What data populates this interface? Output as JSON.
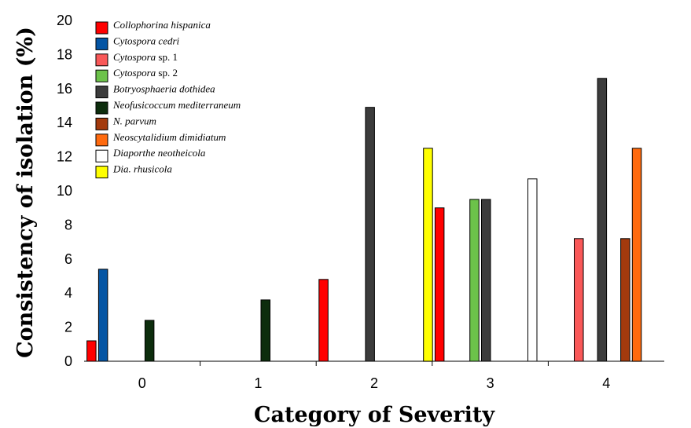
{
  "chart_data": {
    "type": "bar",
    "title": "",
    "xlabel": "Category of Severity",
    "ylabel": "Consistency of isolation (%)",
    "ylim": [
      0,
      20
    ],
    "yticks": [
      "0",
      "2",
      "4",
      "6",
      "8",
      "10",
      "12",
      "14",
      "16",
      "18",
      "20"
    ],
    "categories": [
      "0",
      "1",
      "2",
      "3",
      "4"
    ],
    "grid": false,
    "legend_position": "top-left",
    "series": [
      {
        "name": "Collophorina hispanica",
        "italic": "Collophorina hispanica",
        "suffix": "",
        "color": "#ff0000",
        "values": [
          1.2,
          0,
          4.8,
          9.0,
          0
        ]
      },
      {
        "name": "Cytospora cedri",
        "italic": "Cytospora cedri",
        "suffix": "",
        "color": "#0455a4",
        "values": [
          5.4,
          0,
          0,
          0,
          0
        ]
      },
      {
        "name": "Cytospora sp. 1",
        "italic": "Cytospora",
        "suffix": " sp. 1",
        "color": "#f95858",
        "values": [
          0,
          0,
          0,
          0,
          7.2
        ]
      },
      {
        "name": "Cytospora sp. 2",
        "italic": "Cytospora",
        "suffix": " sp. 2",
        "color": "#6cc24a",
        "values": [
          0,
          0,
          0,
          9.5,
          0
        ]
      },
      {
        "name": "Botryosphaeria dothidea",
        "italic": "Botryosphaeria dothidea",
        "suffix": "",
        "color": "#3c3c3c",
        "values": [
          0,
          0,
          14.9,
          9.5,
          16.6
        ]
      },
      {
        "name": "Neofusicoccum mediterraneum",
        "italic": "Neofusicoccum mediterraneum",
        "suffix": "",
        "color": "#0d2d0d",
        "values": [
          2.4,
          3.6,
          0,
          0,
          0
        ]
      },
      {
        "name": "N. parvum",
        "italic": "N. parvum",
        "suffix": "",
        "color": "#a33a0d",
        "values": [
          0,
          0,
          0,
          0,
          7.2
        ]
      },
      {
        "name": "Neoscytalidium dimidiatum",
        "italic": "Neoscytalidium dimidiatum",
        "suffix": "",
        "color": "#ff6a0e",
        "values": [
          0,
          0,
          0,
          0,
          12.5
        ]
      },
      {
        "name": "Diaporthe neotheicola",
        "italic": "Diaporthe neotheicola",
        "suffix": "",
        "color": "#ffffff",
        "values": [
          0,
          0,
          0,
          10.7,
          0
        ]
      },
      {
        "name": "Dia. rhusicola",
        "italic": "Dia. rhusicola",
        "suffix": "",
        "color": "#ffff00",
        "values": [
          0,
          0,
          12.5,
          0,
          0
        ]
      }
    ]
  }
}
